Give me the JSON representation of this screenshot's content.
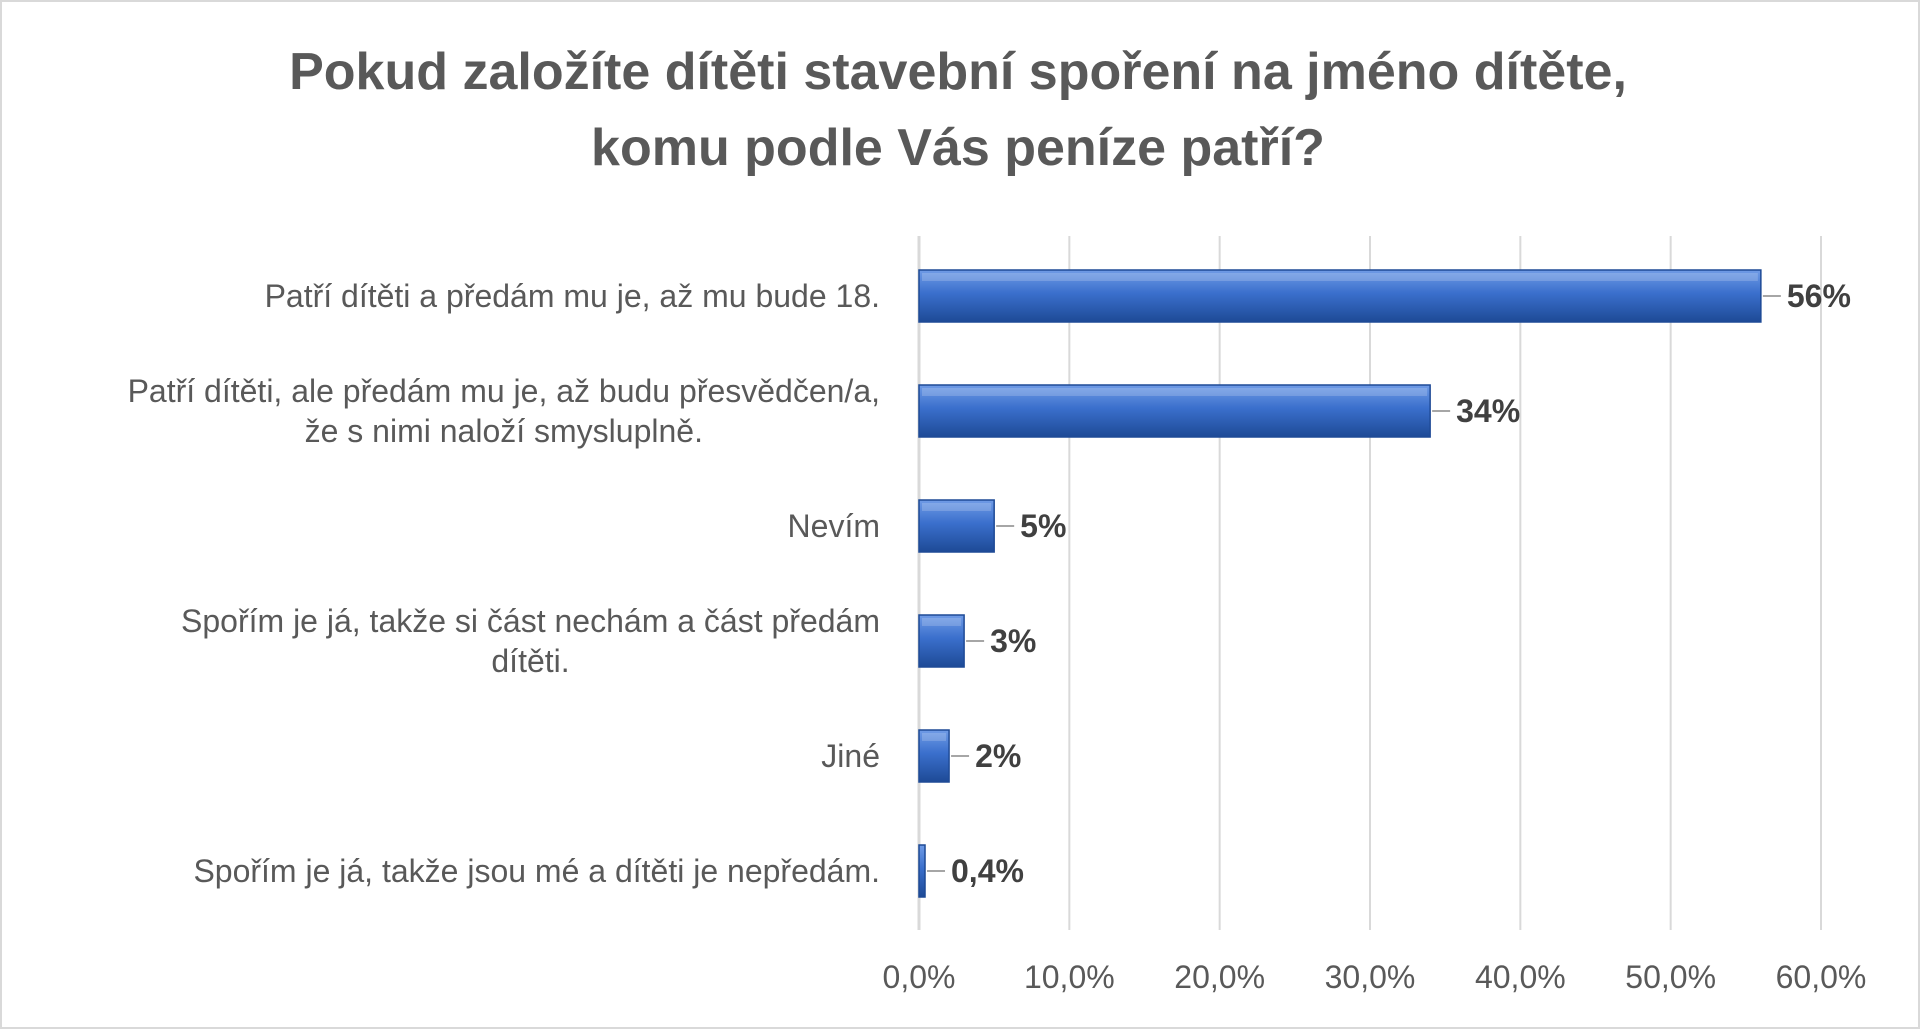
{
  "chart_data": {
    "type": "bar",
    "orientation": "horizontal",
    "title_lines": [
      "Pokud založíte dítěti stavební spoření na jméno dítěte,",
      "komu podle Vás peníze patří?"
    ],
    "categories": [
      [
        "Patří dítěti a předám mu je, až mu bude 18."
      ],
      [
        "Patří dítěti, ale předám mu je, až budu přesvědčen/a,",
        "že s nimi naloží smysluplně."
      ],
      [
        "Nevím"
      ],
      [
        "Spořím je já, takže si část nechám a část předám",
        "dítěti."
      ],
      [
        "Jiné"
      ],
      [
        "Spořím je já, takže jsou mé a dítěti je nepředám."
      ]
    ],
    "values": [
      56,
      34,
      5,
      3,
      2,
      0.4
    ],
    "data_labels": [
      "56%",
      "34%",
      "5%",
      "3%",
      "2%",
      "0,4%"
    ],
    "xlim": [
      0,
      60
    ],
    "x_ticks": [
      0,
      10,
      20,
      30,
      40,
      50,
      60
    ],
    "x_tick_labels": [
      "0,0%",
      "10,0%",
      "20,0%",
      "30,0%",
      "40,0%",
      "50,0%",
      "60,0%"
    ],
    "grid": true,
    "legend": "none",
    "colors": {
      "bar_fill": "#3a6fcc",
      "bar_light": "#6f9be6",
      "bar_dark": "#1e4a96",
      "grid": "#d9d9d9",
      "text": "#595959",
      "label_text": "#404040"
    }
  }
}
